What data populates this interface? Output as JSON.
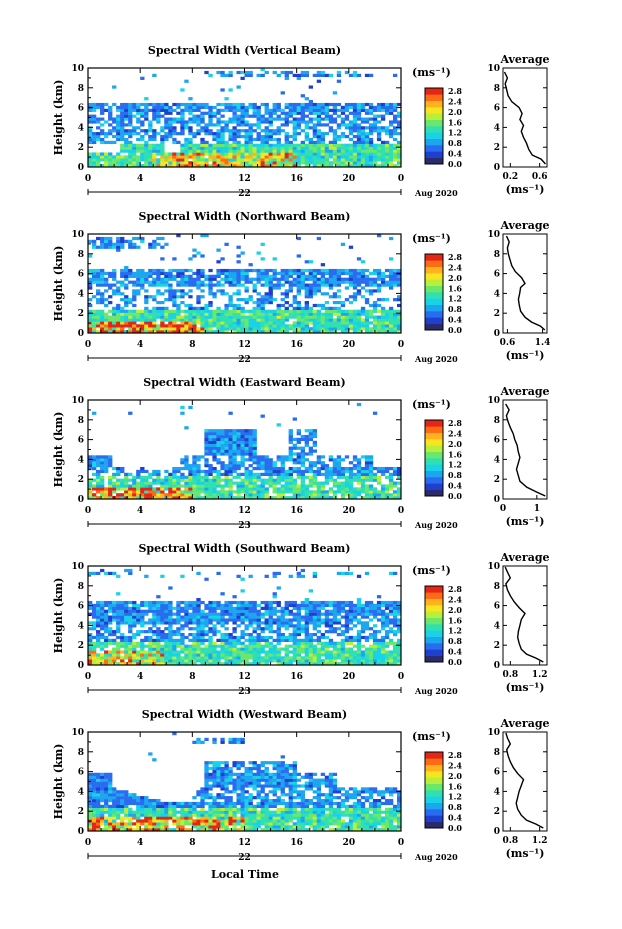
{
  "figure": {
    "xlabel": "Local Time"
  },
  "colorbar": {
    "unit_label": "(ms⁻¹)",
    "ticks": [
      "2.8",
      "2.4",
      "2.0",
      "1.6",
      "1.2",
      "0.8",
      "0.4",
      "0.0"
    ],
    "colors": [
      "#2b2b6b",
      "#1f3fcf",
      "#2a6cf0",
      "#1da6f0",
      "#19d2e8",
      "#31e0b0",
      "#6be86b",
      "#b9ee3a",
      "#f7e51f",
      "#ffb21e",
      "#ff6a14",
      "#e32617"
    ]
  },
  "chart_data": [
    {
      "type": "heatmap",
      "title": "Spectral Width (Vertical Beam)",
      "ylabel": "Height (km)",
      "xlim": [
        0,
        24
      ],
      "ylim": [
        0,
        10
      ],
      "x_ticks": [
        "0",
        "4",
        "8",
        "12",
        "16",
        "20",
        "0"
      ],
      "y_ticks": [
        "0",
        "2",
        "4",
        "6",
        "8",
        "10"
      ],
      "day_label": "22",
      "month_label": "Aug 2020",
      "color_range": [
        0.0,
        2.8
      ],
      "profile": {
        "title": "Average",
        "xlabel": "(ms⁻¹)",
        "x_ticks": [
          "0.2",
          "0.6"
        ],
        "xlim": [
          0.1,
          0.7
        ],
        "y_ticks": [
          "0",
          "2",
          "4",
          "6",
          "8",
          "10"
        ],
        "points": [
          [
            0.68,
            0.3
          ],
          [
            0.62,
            0.8
          ],
          [
            0.5,
            1.2
          ],
          [
            0.45,
            1.8
          ],
          [
            0.42,
            2.4
          ],
          [
            0.38,
            3.0
          ],
          [
            0.35,
            3.6
          ],
          [
            0.38,
            4.2
          ],
          [
            0.33,
            4.8
          ],
          [
            0.36,
            5.4
          ],
          [
            0.32,
            6.0
          ],
          [
            0.22,
            6.6
          ],
          [
            0.17,
            7.2
          ],
          [
            0.15,
            7.8
          ],
          [
            0.13,
            8.4
          ],
          [
            0.16,
            9.0
          ],
          [
            0.12,
            9.6
          ]
        ]
      }
    },
    {
      "type": "heatmap",
      "title": "Spectral Width (Northward Beam)",
      "ylabel": "Height (km)",
      "xlim": [
        0,
        24
      ],
      "ylim": [
        0,
        10
      ],
      "x_ticks": [
        "0",
        "4",
        "8",
        "12",
        "16",
        "20",
        "0"
      ],
      "y_ticks": [
        "0",
        "2",
        "4",
        "6",
        "8",
        "10"
      ],
      "day_label": "22",
      "month_label": "Aug 2020",
      "color_range": [
        0.0,
        2.8
      ],
      "profile": {
        "title": "Average",
        "xlabel": "(ms⁻¹)",
        "x_ticks": [
          "0.6",
          "1.4"
        ],
        "xlim": [
          0.5,
          1.5
        ],
        "y_ticks": [
          "0",
          "2",
          "4",
          "6",
          "8",
          "10"
        ],
        "points": [
          [
            1.45,
            0.3
          ],
          [
            1.35,
            0.7
          ],
          [
            1.15,
            1.1
          ],
          [
            1.0,
            1.6
          ],
          [
            0.9,
            2.2
          ],
          [
            0.87,
            2.8
          ],
          [
            0.85,
            3.4
          ],
          [
            0.88,
            4.0
          ],
          [
            0.9,
            4.6
          ],
          [
            1.0,
            5.0
          ],
          [
            0.92,
            5.6
          ],
          [
            0.78,
            6.2
          ],
          [
            0.7,
            6.8
          ],
          [
            0.66,
            7.4
          ],
          [
            0.62,
            8.0
          ],
          [
            0.6,
            8.6
          ],
          [
            0.64,
            9.2
          ],
          [
            0.58,
            9.8
          ]
        ]
      }
    },
    {
      "type": "heatmap",
      "title": "Spectral Width (Eastward Beam)",
      "ylabel": "Height (km)",
      "xlim": [
        0,
        24
      ],
      "ylim": [
        0,
        10
      ],
      "x_ticks": [
        "0",
        "4",
        "8",
        "12",
        "16",
        "20",
        "0"
      ],
      "y_ticks": [
        "0",
        "2",
        "4",
        "6",
        "8",
        "10"
      ],
      "day_label": "23",
      "month_label": "Aug 2020",
      "color_range": [
        0.0,
        2.8
      ],
      "profile": {
        "title": "Average",
        "xlabel": "(ms⁻¹)",
        "x_ticks": [
          "0",
          "1"
        ],
        "xlim": [
          0,
          1.3
        ],
        "y_ticks": [
          "0",
          "2",
          "4",
          "6",
          "8",
          "10"
        ],
        "points": [
          [
            1.25,
            0.3
          ],
          [
            1.0,
            0.7
          ],
          [
            0.7,
            1.2
          ],
          [
            0.5,
            1.8
          ],
          [
            0.45,
            2.4
          ],
          [
            0.4,
            3.0
          ],
          [
            0.45,
            3.6
          ],
          [
            0.5,
            4.2
          ],
          [
            0.45,
            4.8
          ],
          [
            0.42,
            5.4
          ],
          [
            0.35,
            6.0
          ],
          [
            0.3,
            6.6
          ],
          [
            0.22,
            7.2
          ],
          [
            0.15,
            7.8
          ],
          [
            0.1,
            8.4
          ],
          [
            0.18,
            9.0
          ],
          [
            0.08,
            9.6
          ]
        ]
      }
    },
    {
      "type": "heatmap",
      "title": "Spectral Width (Southward Beam)",
      "ylabel": "Height (km)",
      "xlim": [
        0,
        24
      ],
      "ylim": [
        0,
        10
      ],
      "x_ticks": [
        "0",
        "4",
        "8",
        "12",
        "16",
        "20",
        "0"
      ],
      "y_ticks": [
        "0",
        "2",
        "4",
        "6",
        "8",
        "10"
      ],
      "day_label": "23",
      "month_label": "Aug 2020",
      "color_range": [
        0.0,
        2.8
      ],
      "profile": {
        "title": "Average",
        "xlabel": "(ms⁻¹)",
        "x_ticks": [
          "0.8",
          "1.2"
        ],
        "xlim": [
          0.7,
          1.3
        ],
        "y_ticks": [
          "0",
          "2",
          "4",
          "6",
          "8",
          "10"
        ],
        "points": [
          [
            1.25,
            0.3
          ],
          [
            1.15,
            0.7
          ],
          [
            1.02,
            1.1
          ],
          [
            0.95,
            1.6
          ],
          [
            0.92,
            2.2
          ],
          [
            0.9,
            2.8
          ],
          [
            0.91,
            3.4
          ],
          [
            0.93,
            4.0
          ],
          [
            0.95,
            4.6
          ],
          [
            1.0,
            5.2
          ],
          [
            0.92,
            5.8
          ],
          [
            0.85,
            6.4
          ],
          [
            0.8,
            7.0
          ],
          [
            0.76,
            7.6
          ],
          [
            0.74,
            8.2
          ],
          [
            0.8,
            8.8
          ],
          [
            0.76,
            9.4
          ],
          [
            0.73,
            9.9
          ]
        ]
      }
    },
    {
      "type": "heatmap",
      "title": "Spectral Width (Westward Beam)",
      "ylabel": "Height (km)",
      "xlim": [
        0,
        24
      ],
      "ylim": [
        0,
        10
      ],
      "x_ticks": [
        "0",
        "4",
        "8",
        "12",
        "16",
        "20",
        "0"
      ],
      "y_ticks": [
        "0",
        "2",
        "4",
        "6",
        "8",
        "10"
      ],
      "day_label": "22",
      "month_label": "Aug 2020",
      "color_range": [
        0.0,
        2.8
      ],
      "profile": {
        "title": "Average",
        "xlabel": "(ms⁻¹)",
        "x_ticks": [
          "0.8",
          "1.2"
        ],
        "xlim": [
          0.7,
          1.3
        ],
        "y_ticks": [
          "0",
          "2",
          "4",
          "6",
          "8",
          "10"
        ],
        "points": [
          [
            1.25,
            0.3
          ],
          [
            1.15,
            0.7
          ],
          [
            1.02,
            1.1
          ],
          [
            0.95,
            1.6
          ],
          [
            0.9,
            2.2
          ],
          [
            0.88,
            2.8
          ],
          [
            0.9,
            3.4
          ],
          [
            0.92,
            4.0
          ],
          [
            0.95,
            4.6
          ],
          [
            0.98,
            5.2
          ],
          [
            0.9,
            5.8
          ],
          [
            0.84,
            6.4
          ],
          [
            0.8,
            7.0
          ],
          [
            0.77,
            7.6
          ],
          [
            0.75,
            8.2
          ],
          [
            0.8,
            8.8
          ],
          [
            0.76,
            9.4
          ],
          [
            0.74,
            9.9
          ]
        ]
      }
    }
  ]
}
